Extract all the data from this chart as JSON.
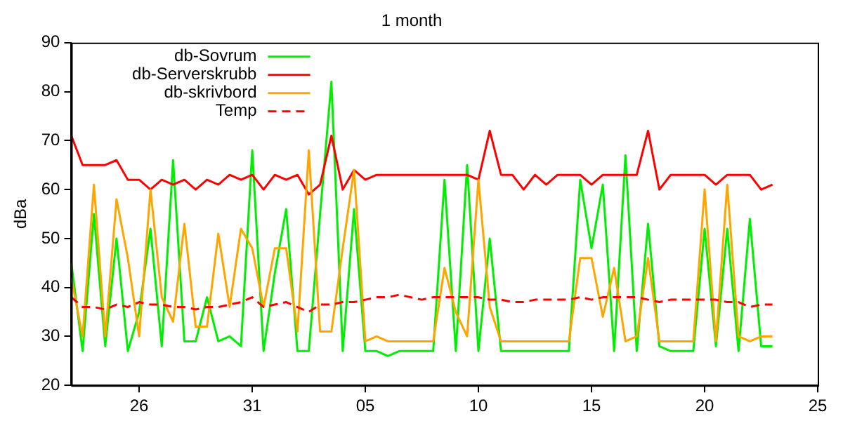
{
  "chart_data": {
    "type": "line",
    "title": "1 month",
    "ylabel": "dBa",
    "x": [
      "--10-23",
      "--10-23T12:00",
      "--10-24",
      "--10-24T12:00",
      "--10-25",
      "--10-25T12:00",
      "--10-26",
      "--10-26T12:00",
      "--10-27",
      "--10-27T12:00",
      "--10-28",
      "--10-28T12:00",
      "--10-29",
      "--10-29T12:00",
      "--10-30",
      "--10-30T12:00",
      "--10-31",
      "--10-31T12:00",
      "--11-01",
      "--11-01T12:00",
      "--11-02",
      "--11-02T12:00",
      "--11-03",
      "--11-03T12:00",
      "--11-04",
      "--11-04T12:00",
      "--11-05",
      "--11-05T12:00",
      "--11-06",
      "--11-06T12:00",
      "--11-07",
      "--11-07T12:00",
      "--11-08",
      "--11-08T12:00",
      "--11-09",
      "--11-09T12:00",
      "--11-10",
      "--11-10T12:00",
      "--11-11",
      "--11-11T12:00",
      "--11-12",
      "--11-12T12:00",
      "--11-13",
      "--11-13T12:00",
      "--11-14",
      "--11-14T12:00",
      "--11-15",
      "--11-15T12:00",
      "--11-16",
      "--11-16T12:00",
      "--11-17",
      "--11-17T12:00",
      "--11-18",
      "--11-18T12:00",
      "--11-19",
      "--11-19T12:00",
      "--11-20",
      "--11-20T12:00",
      "--11-21",
      "--11-21T12:00",
      "--11-22",
      "--11-22T12:00",
      "--11-23"
    ],
    "xlim": [
      "--10-23",
      "--11-25"
    ],
    "xticks": [
      {
        "value": "--10-26",
        "label": "26"
      },
      {
        "value": "--10-31",
        "label": "31"
      },
      {
        "value": "--11-05",
        "label": "05"
      },
      {
        "value": "--11-10",
        "label": "10"
      },
      {
        "value": "--11-15",
        "label": "15"
      },
      {
        "value": "--11-20",
        "label": "20"
      },
      {
        "value": "--11-25",
        "label": "25"
      }
    ],
    "ylim": [
      20,
      90
    ],
    "yticks": [
      20,
      30,
      40,
      50,
      60,
      70,
      80,
      90
    ],
    "grid": false,
    "legend": "top left",
    "marker": "none",
    "series": [
      {
        "name": "db-Sovrum",
        "color": "#00ee00",
        "values": [
          45,
          27,
          55,
          28,
          50,
          27,
          35,
          52,
          28,
          66,
          29,
          29,
          38,
          29,
          30,
          28,
          68,
          27,
          43,
          56,
          27,
          27,
          55,
          82,
          27,
          56,
          27,
          27,
          26,
          27,
          27,
          27,
          27,
          62,
          27,
          65,
          27,
          50,
          27,
          27,
          27,
          27,
          27,
          27,
          27,
          62,
          48,
          61,
          27,
          67,
          27,
          53,
          28,
          27,
          27,
          27,
          52,
          28,
          52,
          27,
          54,
          28,
          28
        ]
      },
      {
        "name": "db-Serverskrubb",
        "color": "#ff0000",
        "values": [
          71,
          65,
          65,
          65,
          66,
          62,
          62,
          60,
          62,
          61,
          62,
          60,
          62,
          61,
          63,
          62,
          63,
          60,
          63,
          62,
          63,
          59,
          61,
          71,
          60,
          64,
          62,
          63,
          63,
          63,
          63,
          63,
          63,
          63,
          63,
          63,
          62,
          72,
          63,
          63,
          60,
          63,
          61,
          63,
          63,
          63,
          61,
          63,
          63,
          63,
          63,
          72,
          60,
          63,
          63,
          63,
          63,
          61,
          63,
          63,
          63,
          60,
          61
        ]
      },
      {
        "name": "db-skrivbord",
        "color": "#ffa500",
        "values": [
          42,
          30,
          61,
          30,
          58,
          46,
          30,
          60,
          38,
          33,
          53,
          32,
          32,
          51,
          36,
          52,
          48,
          36,
          48,
          48,
          31,
          68,
          31,
          31,
          48,
          64,
          29,
          30,
          29,
          29,
          29,
          29,
          29,
          44,
          35,
          30,
          62,
          36,
          29,
          29,
          29,
          29,
          29,
          29,
          29,
          46,
          46,
          34,
          44,
          29,
          30,
          46,
          29,
          29,
          29,
          29,
          60,
          29,
          61,
          30,
          29,
          30,
          30
        ]
      },
      {
        "name": "Temp",
        "color": "#ff0000",
        "line_style": "dashed",
        "values": [
          38,
          36,
          36,
          35.5,
          36.5,
          36,
          37,
          36.5,
          36.5,
          36,
          36,
          35.5,
          36,
          36,
          36.5,
          37,
          38,
          36,
          36.5,
          37,
          36,
          35,
          36.5,
          36.5,
          37,
          37,
          37.5,
          38,
          38,
          38.5,
          38,
          37.5,
          38,
          38,
          38,
          38,
          38,
          37.5,
          37.5,
          37,
          37,
          37.5,
          37.5,
          37.5,
          37.5,
          38,
          37.5,
          38,
          38,
          38,
          38,
          37.5,
          37,
          37.5,
          37.5,
          37.5,
          37.5,
          37.5,
          37,
          37,
          36,
          36.5,
          36.5
        ]
      }
    ]
  }
}
